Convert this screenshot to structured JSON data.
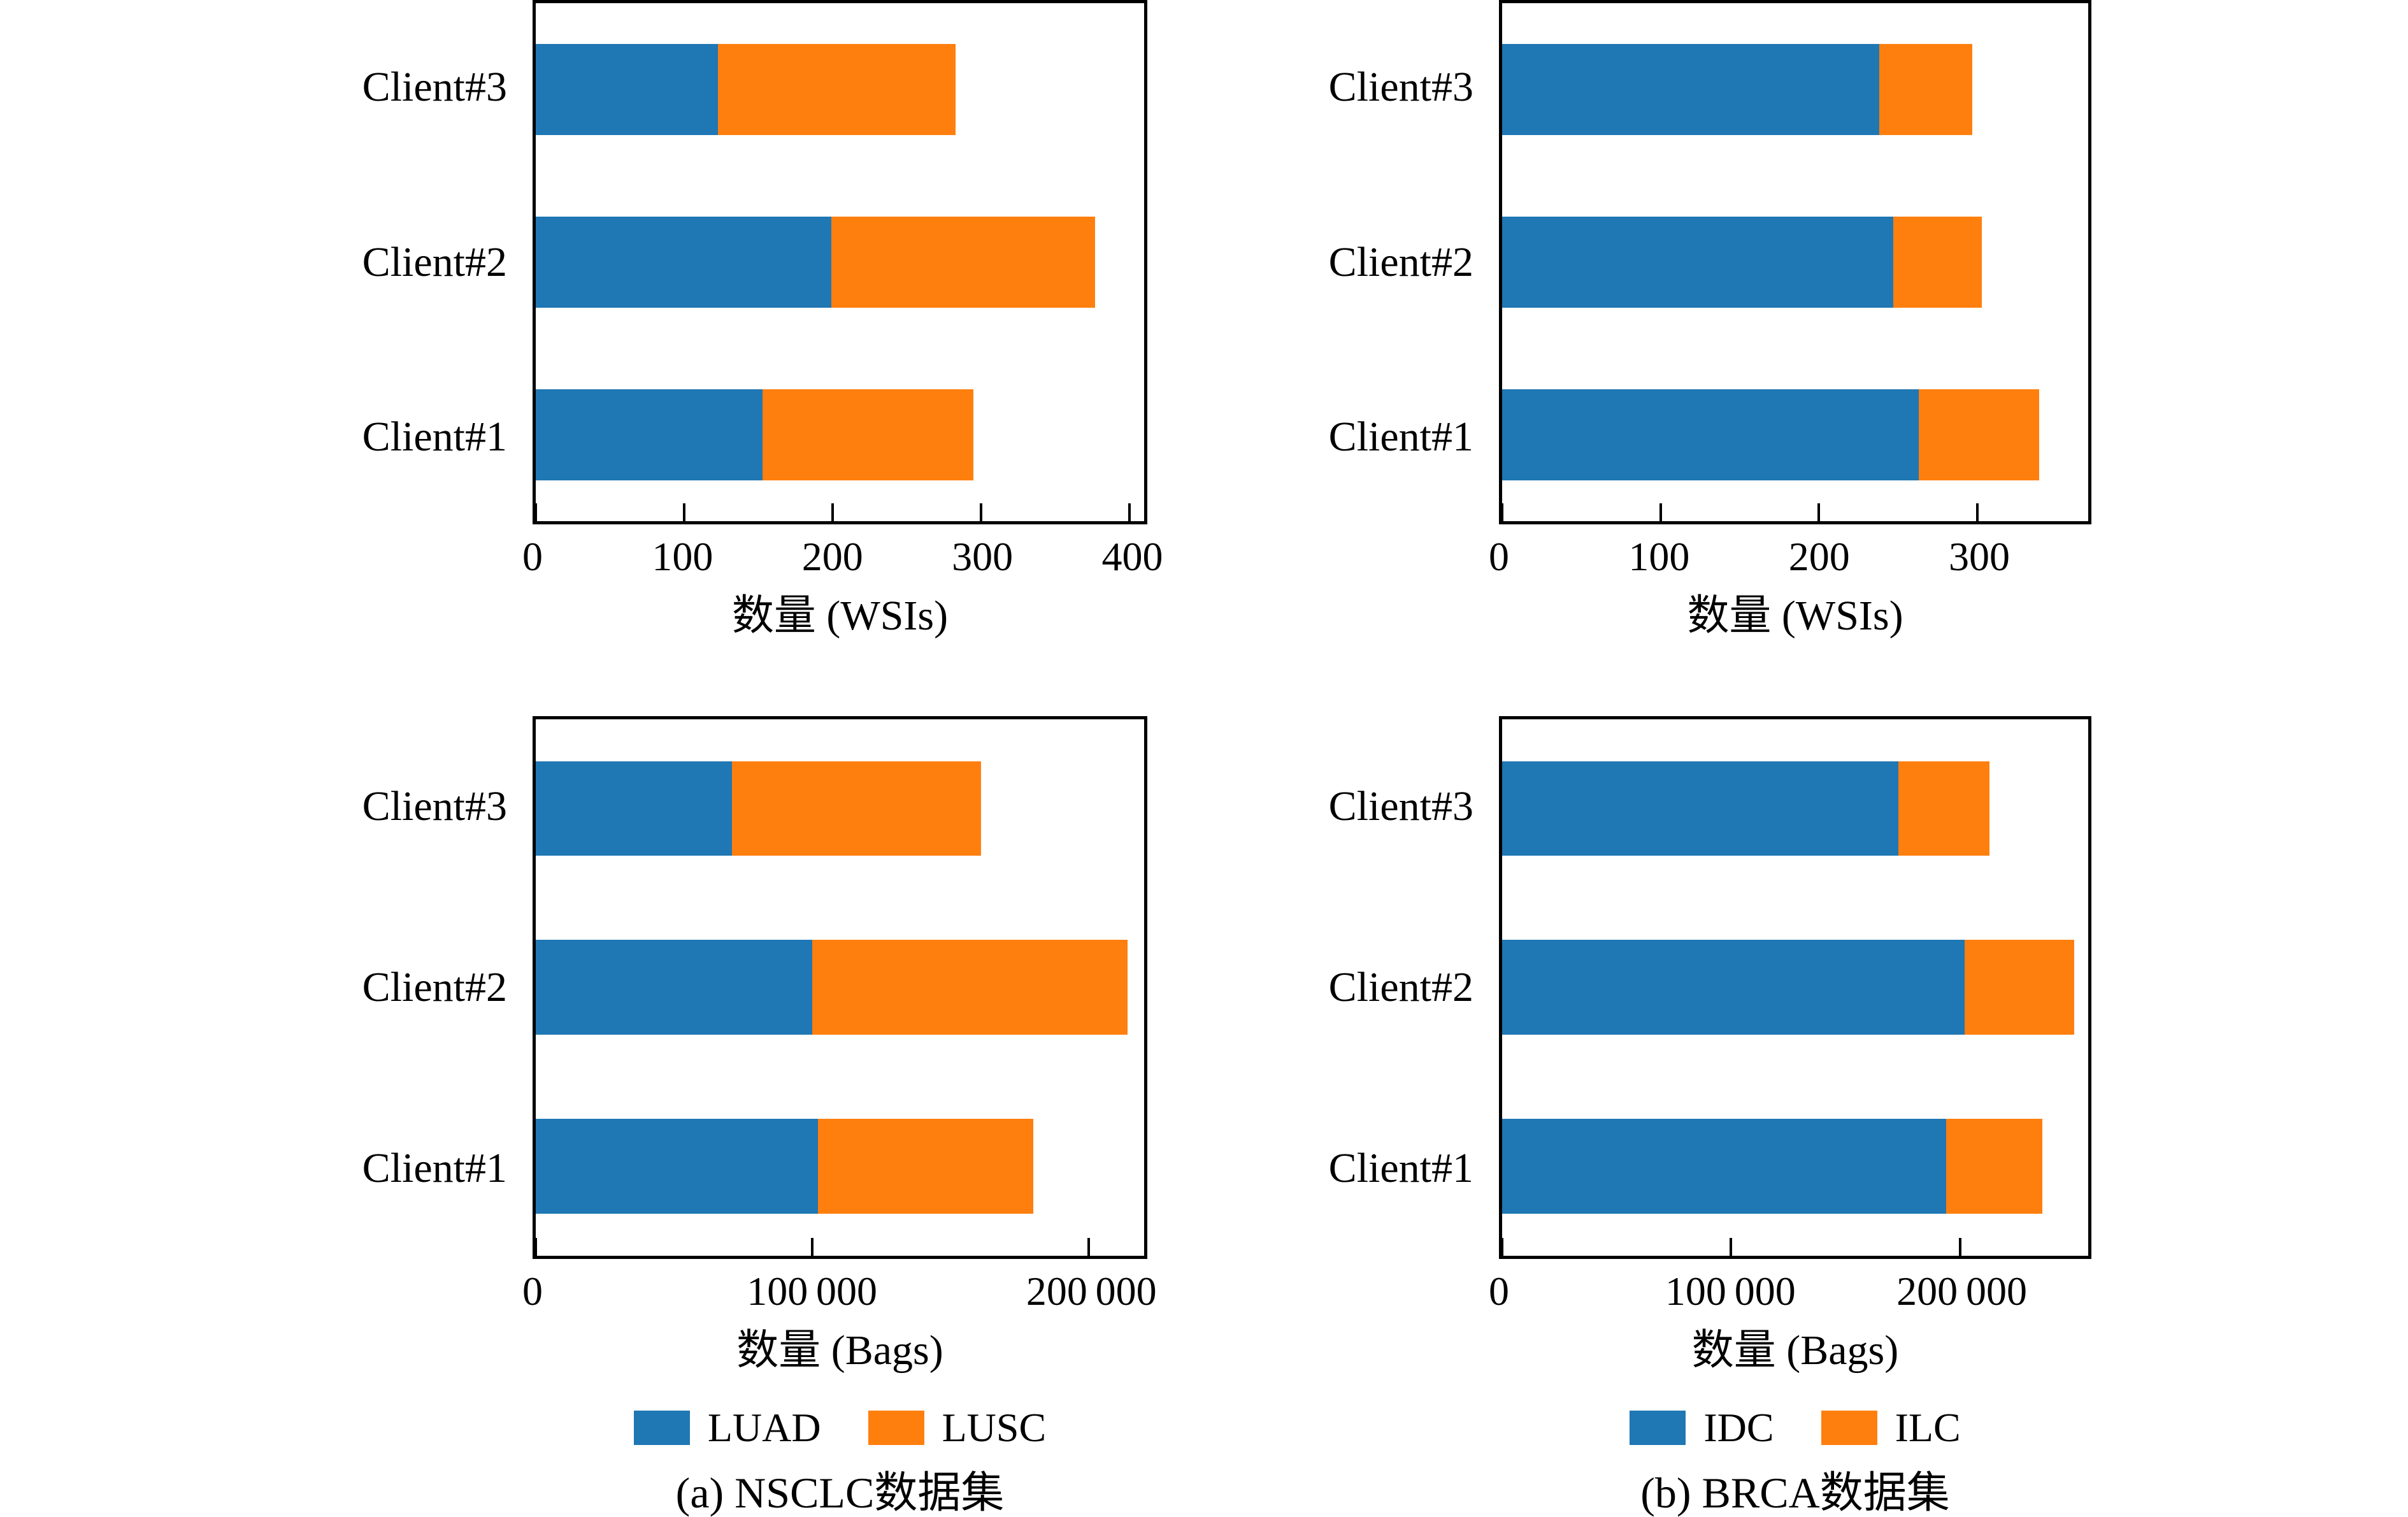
{
  "chart_data": [
    {
      "id": "nsclc-wsis",
      "type": "bar",
      "orientation": "horizontal",
      "stacked": true,
      "grid": false,
      "title": "",
      "xlabel": "数量 (WSIs)",
      "ylabel": "",
      "category_order": "top-to-bottom",
      "categories": [
        "Client#3",
        "Client#2",
        "Client#1"
      ],
      "series": [
        {
          "name": "LUAD",
          "color": "#1f77b4",
          "values": [
            123,
            199,
            153
          ]
        },
        {
          "name": "LUSC",
          "color": "#ff7f0e",
          "values": [
            160,
            178,
            142
          ]
        }
      ],
      "totals": [
        283,
        377,
        295
      ],
      "xlim": [
        0,
        410
      ],
      "xticks": [
        0,
        100,
        200,
        300,
        400
      ],
      "xtick_labels": [
        "0",
        "100",
        "200",
        "300",
        "400"
      ]
    },
    {
      "id": "brca-wsis",
      "type": "bar",
      "orientation": "horizontal",
      "stacked": true,
      "grid": false,
      "title": "",
      "xlabel": "数量 (WSIs)",
      "ylabel": "",
      "category_order": "top-to-bottom",
      "categories": [
        "Client#3",
        "Client#2",
        "Client#1"
      ],
      "series": [
        {
          "name": "IDC",
          "color": "#1f77b4",
          "values": [
            238,
            247,
            263
          ]
        },
        {
          "name": "ILC",
          "color": "#ff7f0e",
          "values": [
            59,
            56,
            76
          ]
        }
      ],
      "totals": [
        297,
        303,
        339
      ],
      "xlim": [
        0,
        370
      ],
      "xticks": [
        0,
        100,
        200,
        300
      ],
      "xtick_labels": [
        "0",
        "100",
        "200",
        "300"
      ]
    },
    {
      "id": "nsclc-bags",
      "type": "bar",
      "orientation": "horizontal",
      "stacked": true,
      "grid": false,
      "title": "",
      "xlabel": "数量 (Bags)",
      "ylabel": "",
      "category_order": "top-to-bottom",
      "categories": [
        "Client#3",
        "Client#2",
        "Client#1"
      ],
      "series": [
        {
          "name": "LUAD",
          "color": "#1f77b4",
          "values": [
            71000,
            100000,
            102000
          ]
        },
        {
          "name": "LUSC",
          "color": "#ff7f0e",
          "values": [
            90000,
            114000,
            78000
          ]
        }
      ],
      "totals": [
        161000,
        214000,
        180000
      ],
      "xlim": [
        0,
        220000
      ],
      "xticks": [
        0,
        100000,
        200000
      ],
      "xtick_labels": [
        "0",
        "100 000",
        "200 000"
      ]
    },
    {
      "id": "brca-bags",
      "type": "bar",
      "orientation": "horizontal",
      "stacked": true,
      "grid": false,
      "title": "",
      "xlabel": "数量 (Bags)",
      "ylabel": "",
      "category_order": "top-to-bottom",
      "categories": [
        "Client#3",
        "Client#2",
        "Client#1"
      ],
      "series": [
        {
          "name": "IDC",
          "color": "#1f77b4",
          "values": [
            173000,
            202000,
            194000
          ]
        },
        {
          "name": "ILC",
          "color": "#ff7f0e",
          "values": [
            40000,
            48000,
            42000
          ]
        }
      ],
      "totals": [
        213000,
        250000,
        236000
      ],
      "xlim": [
        0,
        256000
      ],
      "xticks": [
        0,
        100000,
        200000
      ],
      "xtick_labels": [
        "0",
        "100 000",
        "200 000"
      ]
    }
  ],
  "legends": [
    {
      "items": [
        {
          "label": "LUAD",
          "color": "#1f77b4"
        },
        {
          "label": "LUSC",
          "color": "#ff7f0e"
        }
      ]
    },
    {
      "items": [
        {
          "label": "IDC",
          "color": "#1f77b4"
        },
        {
          "label": "ILC",
          "color": "#ff7f0e"
        }
      ]
    }
  ],
  "captions": [
    {
      "text": "(a) NSCLC数据集"
    },
    {
      "text": "(b) BRCA数据集"
    }
  ],
  "colors": {
    "bar_blue": "#1f77b4",
    "bar_orange": "#ff7f0e",
    "frame": "#000000"
  }
}
